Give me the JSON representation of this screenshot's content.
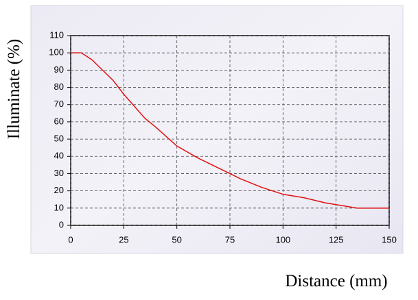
{
  "chart_data": {
    "type": "line",
    "x_label": "Distance (mm)",
    "y_label": "Illuminate (%)",
    "x": [
      0,
      5,
      10,
      15,
      20,
      25,
      30,
      35,
      40,
      50,
      60,
      70,
      75,
      80,
      90,
      100,
      110,
      120,
      125,
      130,
      135,
      140,
      145,
      150
    ],
    "series": [
      {
        "color": "#e01010",
        "values": [
          100,
          100,
          96,
          90,
          84,
          76,
          69,
          62,
          57,
          46,
          39,
          33,
          30,
          27,
          22,
          18,
          16,
          13,
          12,
          11,
          10,
          10,
          10,
          10
        ]
      }
    ],
    "xlim": [
      0,
      150
    ],
    "xticks": [
      0,
      25,
      50,
      75,
      100,
      125,
      150
    ],
    "ylim": [
      0,
      110
    ],
    "yticks": [
      0,
      10,
      20,
      30,
      40,
      50,
      60,
      70,
      80,
      90,
      100,
      110
    ],
    "grid": true
  }
}
